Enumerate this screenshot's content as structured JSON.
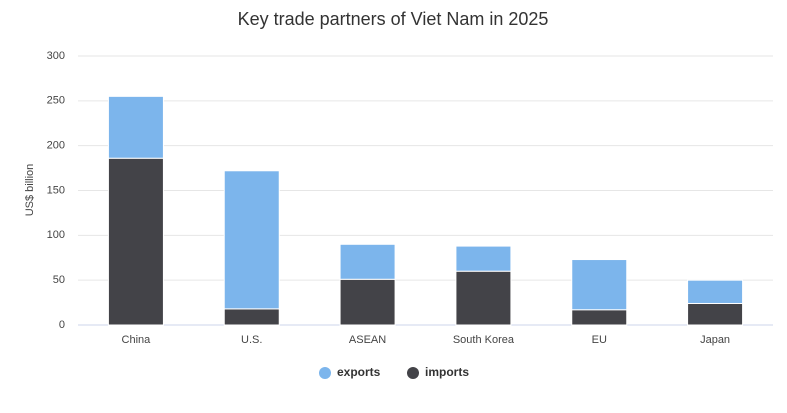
{
  "chart_data": {
    "type": "stacked-bar",
    "title": "Key trade partners of Viet Nam in 2025",
    "y_label": "US$ billion",
    "categories": [
      "China",
      "U.S.",
      "ASEAN",
      "South Korea",
      "EU",
      "Japan"
    ],
    "series": [
      {
        "name": "exports",
        "color": "#7cb5ec",
        "values": [
          69,
          154,
          39,
          28,
          56,
          26
        ]
      },
      {
        "name": "imports",
        "color": "#434348",
        "values": [
          186,
          18,
          51,
          60,
          17,
          24
        ]
      }
    ],
    "ylim": [
      0,
      300
    ],
    "yticks": [
      0,
      50,
      100,
      150,
      200,
      250,
      300
    ],
    "grid": true
  }
}
